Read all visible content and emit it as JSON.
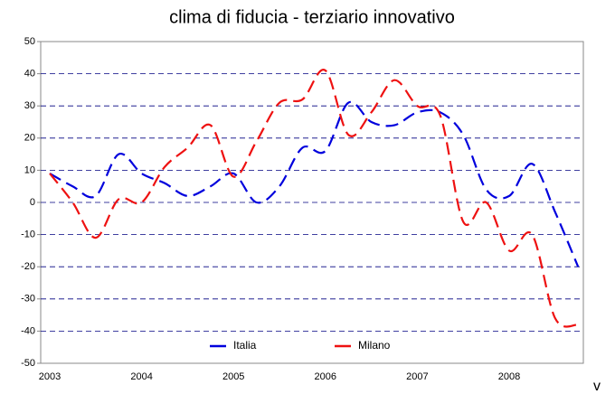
{
  "chart_data": {
    "type": "line",
    "title": "clima di fiducia - terziario innovativo",
    "categories": [
      "2003",
      null,
      null,
      null,
      "2004",
      null,
      null,
      null,
      "2005",
      null,
      null,
      null,
      "2006",
      null,
      null,
      null,
      "2007",
      null,
      null,
      null,
      "2008",
      null,
      null,
      null
    ],
    "series": [
      {
        "name": "Italia",
        "color": "#0000dd",
        "values": [
          9,
          5,
          2,
          15,
          9,
          6,
          2,
          5,
          9,
          0,
          5,
          17,
          16,
          31,
          25,
          24,
          28,
          28,
          21,
          4,
          2,
          12,
          -3,
          -20
        ]
      },
      {
        "name": "Milano",
        "color": "#ee1111",
        "values": [
          9,
          0,
          -11,
          1,
          0,
          11,
          17,
          24,
          8,
          19,
          31,
          32,
          41,
          21,
          28,
          38,
          30,
          27,
          -6,
          0,
          -15,
          -10,
          -36,
          -38
        ]
      }
    ],
    "ylim": [
      -50,
      50
    ],
    "yticks": [
      -50,
      -40,
      -30,
      -20,
      -10,
      0,
      10,
      20,
      30,
      40,
      50
    ],
    "grid": true,
    "annotation": "v"
  }
}
